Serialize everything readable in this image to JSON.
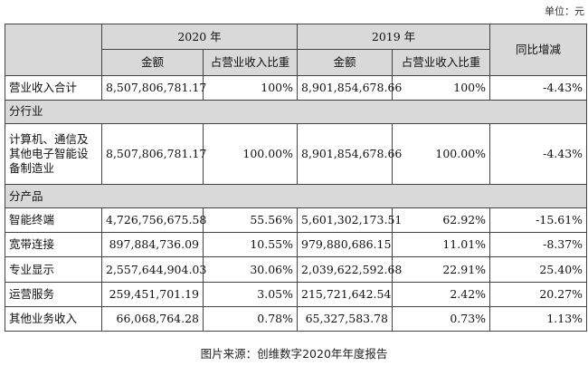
{
  "unit": "单位：元",
  "header": {
    "year_2020": "2020 年",
    "year_2019": "2019 年",
    "yoy": "同比增减",
    "amount": "金额",
    "share": "占营业收入比重"
  },
  "total_row": {
    "label": "营业收入合计",
    "amount_2020": "8,507,806,781.17",
    "share_2020": "100%",
    "amount_2019": "8,901,854,678.66",
    "share_2019": "100%",
    "yoy": "-4.43%"
  },
  "section_industry": "分行业",
  "industry_row": {
    "label": "计算机、通信及其他电子智能设备制造业",
    "amount_2020": "8,507,806,781.17",
    "share_2020": "100.00%",
    "amount_2019": "8,901,854,678.66",
    "share_2019": "100.00%",
    "yoy": "-4.43%"
  },
  "section_product": "分产品",
  "product_rows": [
    {
      "label": "智能终端",
      "amount_2020": "4,726,756,675.58",
      "share_2020": "55.56%",
      "amount_2019": "5,601,302,173.51",
      "share_2019": "62.92%",
      "yoy": "-15.61%"
    },
    {
      "label": "宽带连接",
      "amount_2020": "897,884,736.09",
      "share_2020": "10.55%",
      "amount_2019": "979,880,686.15",
      "share_2019": "11.01%",
      "yoy": "-8.37%"
    },
    {
      "label": "专业显示",
      "amount_2020": "2,557,644,904.03",
      "share_2020": "30.06%",
      "amount_2019": "2,039,622,592.68",
      "share_2019": "22.91%",
      "yoy": "25.40%"
    },
    {
      "label": "运营服务",
      "amount_2020": "259,451,701.19",
      "share_2020": "3.05%",
      "amount_2019": "215,721,642.54",
      "share_2019": "2.42%",
      "yoy": "20.27%"
    },
    {
      "label": "其他业务收入",
      "amount_2020": "66,068,764.28",
      "share_2020": "0.78%",
      "amount_2019": "65,327,583.78",
      "share_2019": "0.73%",
      "yoy": "1.13%"
    }
  ],
  "caption": "图片来源：创维数字2020年年度报告"
}
